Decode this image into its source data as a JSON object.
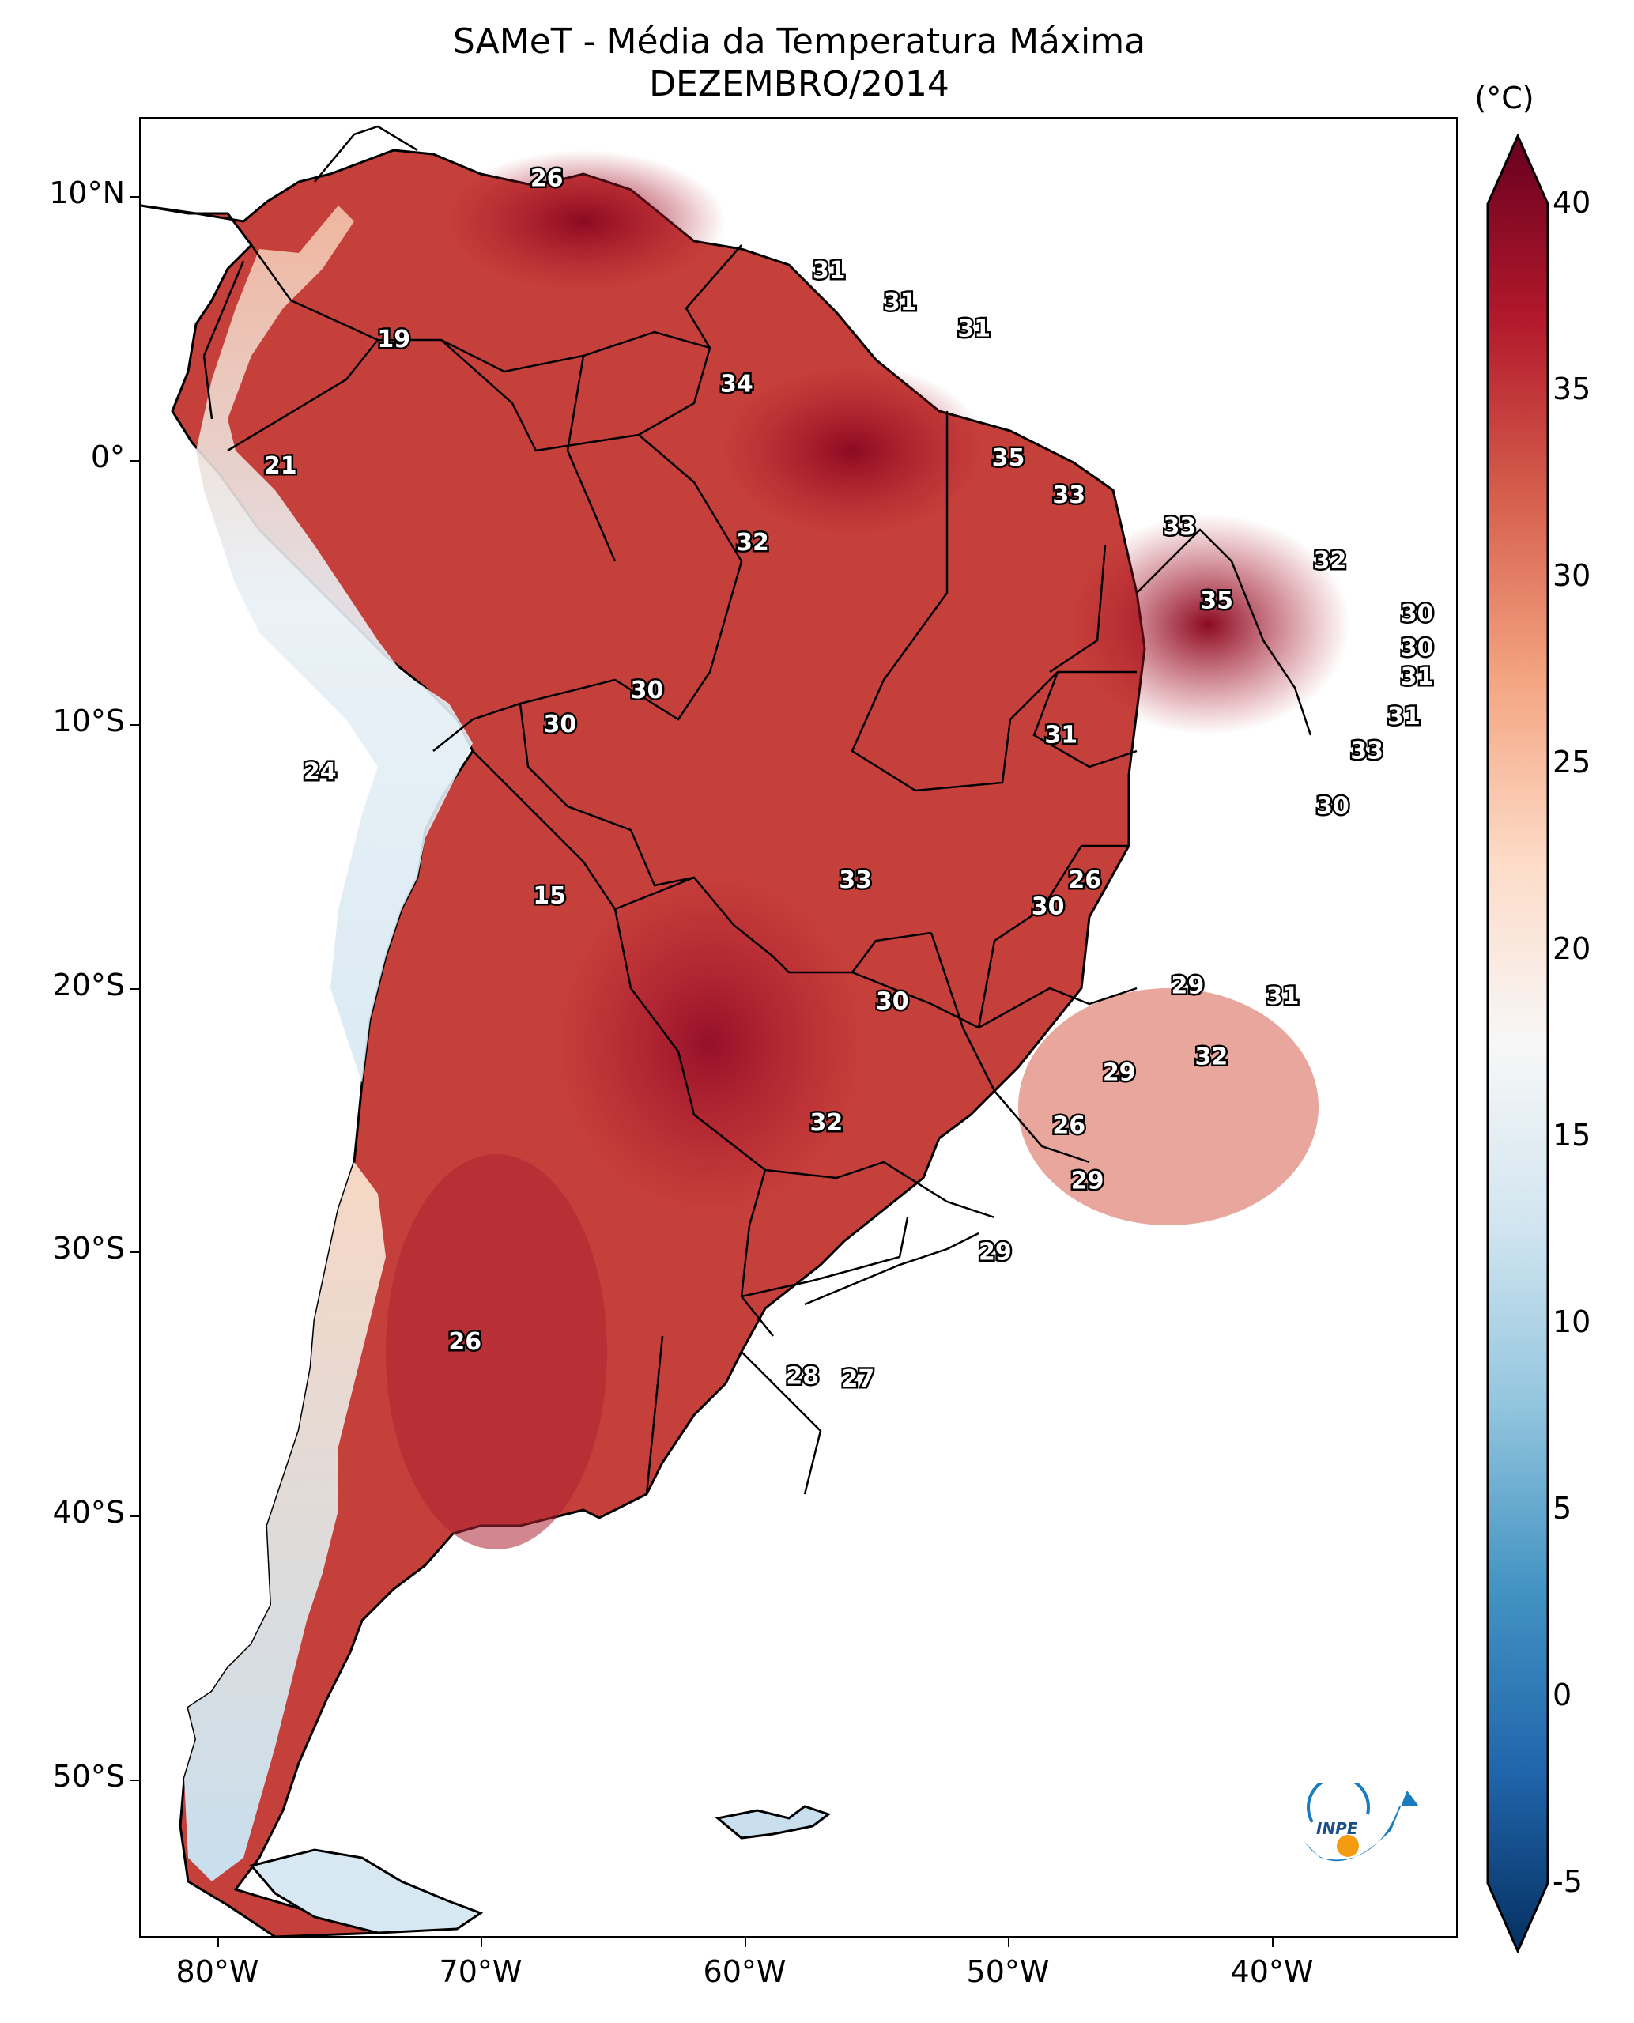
{
  "title": {
    "line1": "SAMeT - Média da Temperatura Máxima",
    "line2": "DEZEMBRO/2014"
  },
  "map": {
    "lat_labels": [
      "10°N",
      "0°",
      "10°S",
      "20°S",
      "30°S",
      "40°S",
      "50°S"
    ],
    "lon_labels": [
      "80°W",
      "70°W",
      "60°W",
      "50°W",
      "40°W"
    ],
    "lon_range": [
      -83,
      -33
    ],
    "lat_range": [
      -56,
      13
    ],
    "values": [
      {
        "text": "26",
        "lon": -67.6,
        "lat": 10.7
      },
      {
        "text": "19",
        "lon": -73.4,
        "lat": 4.6
      },
      {
        "text": "21",
        "lon": -77.7,
        "lat": -0.2
      },
      {
        "text": "24",
        "lon": -76.2,
        "lat": -11.8
      },
      {
        "text": "15",
        "lon": -67.5,
        "lat": -16.5
      },
      {
        "text": "26",
        "lon": -70.7,
        "lat": -33.4
      },
      {
        "text": "31",
        "lon": -56.9,
        "lat": 7.2
      },
      {
        "text": "31",
        "lon": -54.2,
        "lat": 6.0
      },
      {
        "text": "31",
        "lon": -51.4,
        "lat": 5.0
      },
      {
        "text": "34",
        "lon": -60.4,
        "lat": 2.9
      },
      {
        "text": "35",
        "lon": -50.1,
        "lat": 0.1
      },
      {
        "text": "33",
        "lon": -47.8,
        "lat": -1.3
      },
      {
        "text": "33",
        "lon": -43.6,
        "lat": -2.5
      },
      {
        "text": "32",
        "lon": -59.8,
        "lat": -3.1
      },
      {
        "text": "35",
        "lon": -42.2,
        "lat": -5.3
      },
      {
        "text": "32",
        "lon": -37.9,
        "lat": -3.8
      },
      {
        "text": "30",
        "lon": -34.6,
        "lat": -5.8
      },
      {
        "text": "30",
        "lon": -34.6,
        "lat": -7.1
      },
      {
        "text": "31",
        "lon": -34.6,
        "lat": -8.2
      },
      {
        "text": "31",
        "lon": -35.1,
        "lat": -9.7
      },
      {
        "text": "33",
        "lon": -36.5,
        "lat": -11.0
      },
      {
        "text": "30",
        "lon": -63.8,
        "lat": -8.7
      },
      {
        "text": "30",
        "lon": -67.1,
        "lat": -10.0
      },
      {
        "text": "31",
        "lon": -48.1,
        "lat": -10.4
      },
      {
        "text": "30",
        "lon": -37.8,
        "lat": -13.1
      },
      {
        "text": "33",
        "lon": -55.9,
        "lat": -15.9
      },
      {
        "text": "26",
        "lon": -47.2,
        "lat": -15.9
      },
      {
        "text": "30",
        "lon": -48.6,
        "lat": -16.9
      },
      {
        "text": "29",
        "lon": -43.3,
        "lat": -19.9
      },
      {
        "text": "31",
        "lon": -39.7,
        "lat": -20.3
      },
      {
        "text": "30",
        "lon": -54.5,
        "lat": -20.5
      },
      {
        "text": "29",
        "lon": -45.9,
        "lat": -23.2
      },
      {
        "text": "32",
        "lon": -42.4,
        "lat": -22.6
      },
      {
        "text": "32",
        "lon": -57.0,
        "lat": -25.1
      },
      {
        "text": "26",
        "lon": -47.8,
        "lat": -25.2
      },
      {
        "text": "29",
        "lon": -47.1,
        "lat": -27.3
      },
      {
        "text": "29",
        "lon": -50.6,
        "lat": -30.0
      },
      {
        "text": "28",
        "lon": -57.9,
        "lat": -34.7
      },
      {
        "text": "27",
        "lon": -55.8,
        "lat": -34.8
      }
    ]
  },
  "colorbar": {
    "unit": "(°C)",
    "min": -5,
    "max": 40,
    "tick_labels": [
      "-5",
      "0",
      "5",
      "10",
      "15",
      "20",
      "25",
      "30",
      "35",
      "40"
    ],
    "colormap": [
      "#053061",
      "#2166ac",
      "#4393c3",
      "#92c5de",
      "#d1e5f0",
      "#f7f7f7",
      "#fddbc7",
      "#f4a582",
      "#d6604d",
      "#b2182b",
      "#67001f"
    ]
  },
  "logo": {
    "text": "INPE",
    "colors": {
      "blue": "#1a7bbf",
      "orange": "#f39c12"
    }
  }
}
